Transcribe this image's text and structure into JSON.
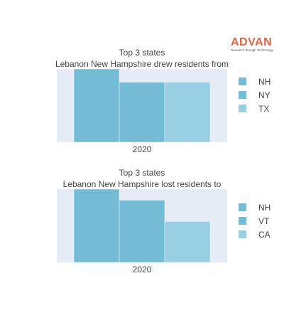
{
  "logo": {
    "text": "ADVAN",
    "tagline": "Research through Technology",
    "color": "#e8603c"
  },
  "chart_data": [
    {
      "type": "bar",
      "title_line1": "Top 3 states",
      "title_line2": "Lebanon New Hampshire drew residents from",
      "categories": [
        "2020"
      ],
      "series": [
        {
          "name": "NH",
          "values": [
            100
          ],
          "color": "#74bcd6"
        },
        {
          "name": "NY",
          "values": [
            82
          ],
          "color": "#74bcd6"
        },
        {
          "name": "TX",
          "values": [
            82
          ],
          "color": "#99cfe2"
        }
      ],
      "ylim": [
        0,
        100
      ],
      "legend_position": "right",
      "grid": false
    },
    {
      "type": "bar",
      "title_line1": "Top 3 states",
      "title_line2": "Lebanon New Hampshire lost residents to",
      "categories": [
        "2020"
      ],
      "series": [
        {
          "name": "NH",
          "values": [
            100
          ],
          "color": "#74bcd6"
        },
        {
          "name": "VT",
          "values": [
            85
          ],
          "color": "#74bcd6"
        },
        {
          "name": "CA",
          "values": [
            56
          ],
          "color": "#99cfe2"
        }
      ],
      "ylim": [
        0,
        100
      ],
      "legend_position": "right",
      "grid": false
    }
  ]
}
